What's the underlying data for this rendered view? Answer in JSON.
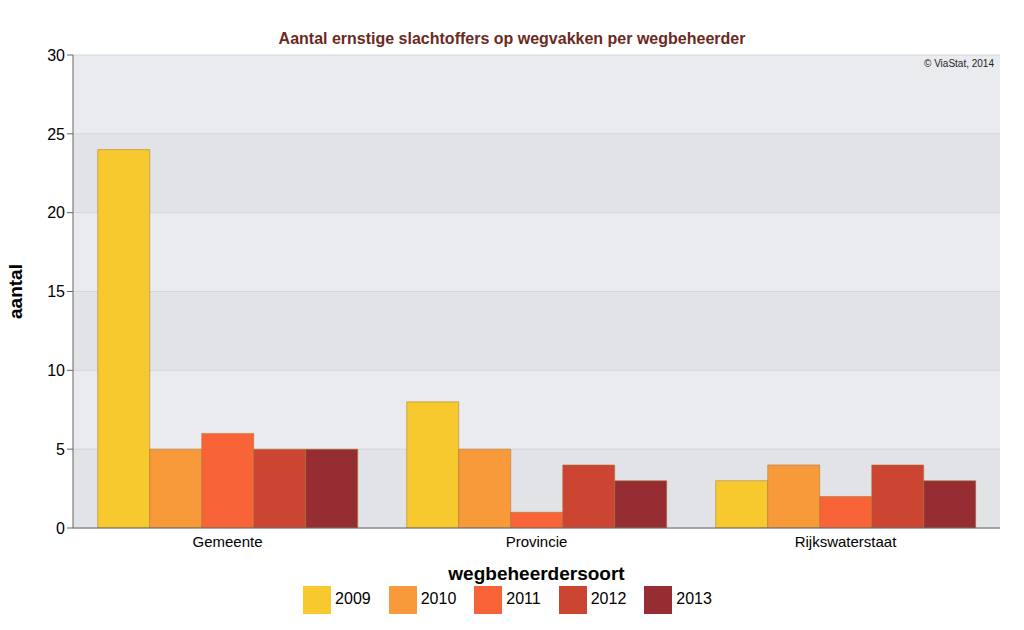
{
  "chart_data": {
    "type": "bar",
    "title": "Aantal ernstige slachtoffers op wegvakken per wegbeheerder",
    "annotations": [
      "© ViaStat, 2014"
    ],
    "x_label": "wegbeheerdersoort",
    "y_label": "aantal",
    "categories": [
      "Gemeente",
      "Provincie",
      "Rijkswaterstaat"
    ],
    "series": [
      {
        "name": "2009",
        "color": "#f8c92f",
        "values": [
          24,
          8,
          3
        ]
      },
      {
        "name": "2010",
        "color": "#f89a3a",
        "values": [
          5,
          5,
          4
        ]
      },
      {
        "name": "2011",
        "color": "#f86337",
        "values": [
          6,
          1,
          2
        ]
      },
      {
        "name": "2012",
        "color": "#cc4533",
        "values": [
          5,
          4,
          4
        ]
      },
      {
        "name": "2013",
        "color": "#962d33",
        "values": [
          5,
          3,
          3
        ]
      }
    ],
    "ylim": [
      0,
      30
    ],
    "yticks": [
      0,
      5,
      10,
      15,
      20,
      25,
      30
    ],
    "grid": true,
    "legend": "bottom"
  }
}
